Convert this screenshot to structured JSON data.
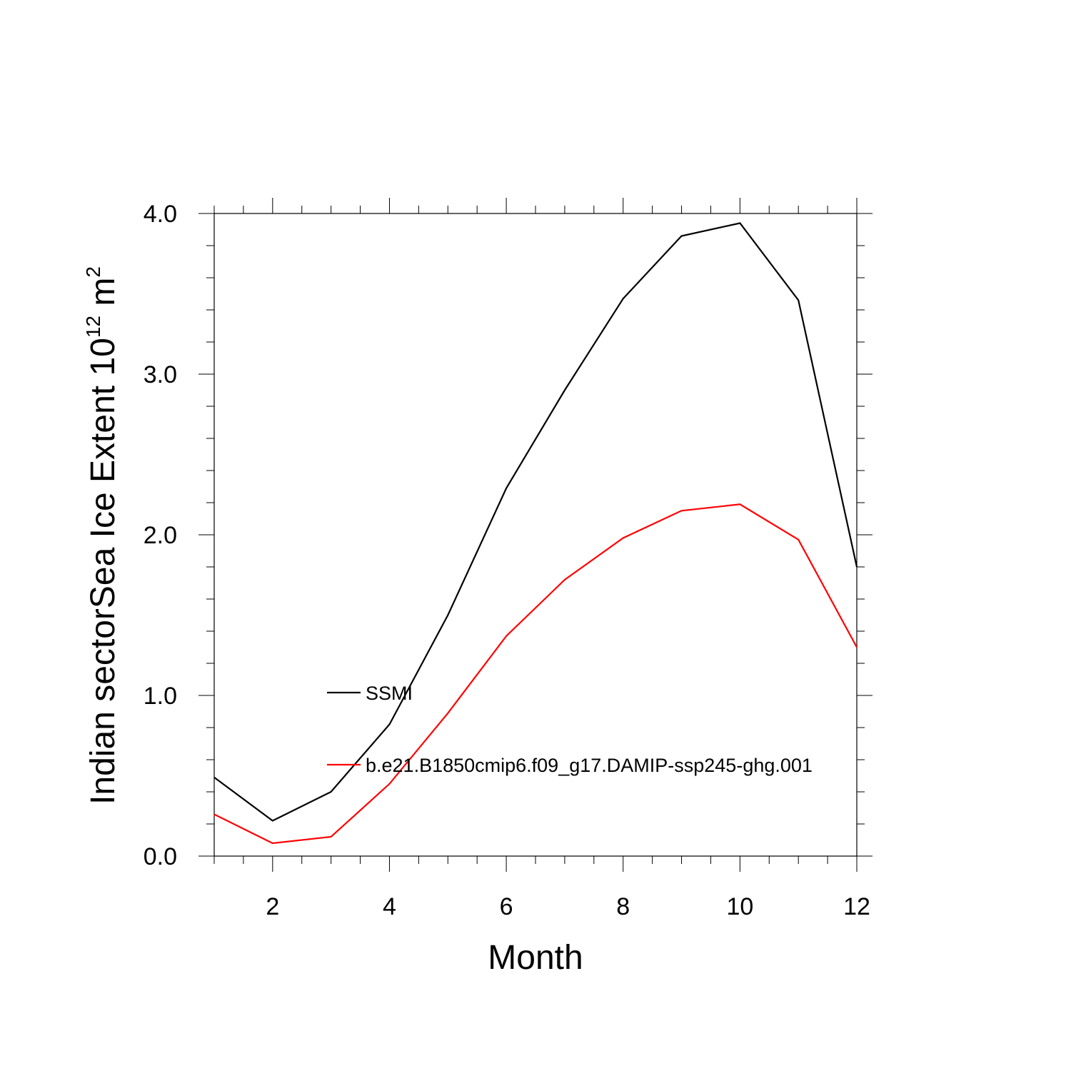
{
  "chart_data": {
    "type": "line",
    "xlabel": "Month",
    "ylabel": {
      "prefix": "Indian sectorSea Ice Extent 10",
      "exponent": "12",
      "unit": " m",
      "unit_exponent": "2"
    },
    "xlim": [
      1,
      12
    ],
    "ylim": [
      0,
      4
    ],
    "x_major_ticks": [
      2,
      4,
      6,
      8,
      10,
      12
    ],
    "x_tick_labels": [
      "2",
      "4",
      "6",
      "8",
      "10",
      "12"
    ],
    "x_minor_step": 0.5,
    "y_major_ticks": [
      0,
      1,
      2,
      3,
      4
    ],
    "y_tick_labels": [
      "0.0",
      "1.0",
      "2.0",
      "3.0",
      "4.0"
    ],
    "y_minor_step": 0.2,
    "grid": false,
    "legend_position": "center",
    "x": [
      1,
      2,
      3,
      4,
      5,
      6,
      7,
      8,
      9,
      10,
      11,
      12
    ],
    "series": [
      {
        "name": "SSMI",
        "color": "#000000",
        "values": [
          0.49,
          0.22,
          0.4,
          0.82,
          1.5,
          2.29,
          2.9,
          3.47,
          3.86,
          3.94,
          3.46,
          1.8
        ]
      },
      {
        "name": "b.e21.B1850cmip6.f09_g17.DAMIP-ssp245-ghg.001",
        "color": "#ff0000",
        "values": [
          0.26,
          0.08,
          0.12,
          0.45,
          0.89,
          1.37,
          1.72,
          1.98,
          2.15,
          2.19,
          1.97,
          1.3
        ]
      }
    ]
  }
}
